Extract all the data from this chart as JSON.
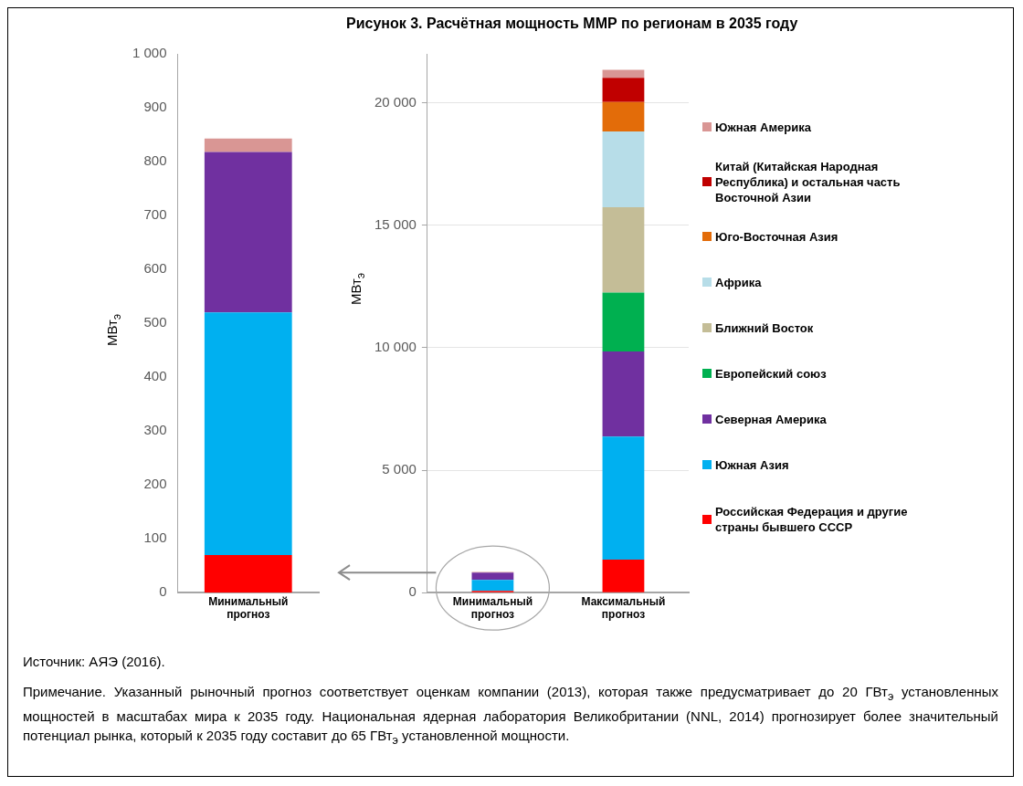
{
  "chart_data": [
    {
      "type": "bar",
      "ylabel": "МВт$_{э}$",
      "categories": [
        "Минимальный прогноз"
      ],
      "stacked": true,
      "grid": false,
      "ylim": [
        0,
        1000
      ],
      "yticks": [
        0,
        100,
        200,
        300,
        400,
        500,
        600,
        700,
        800,
        900,
        {
          "value": 1000,
          "label": "1 000"
        }
      ],
      "series": [
        {
          "color": "#ff0000",
          "values": [
            70
          ]
        },
        {
          "color": "#00b0f0",
          "values": [
            450
          ]
        },
        {
          "color": "#7030a0",
          "values": [
            298
          ]
        },
        {
          "color": "#d99694",
          "values": [
            25
          ]
        }
      ]
    },
    {
      "type": "bar",
      "title": "Рисунок 3. Расчётная мощность ММР по регионам в 2035 году",
      "ylabel": "МВт$_{э}$",
      "categories": [
        "Минимальный прогноз",
        "Максимальный прогноз"
      ],
      "stacked": true,
      "grid": "y",
      "legend": "right",
      "ylim": [
        0,
        22000
      ],
      "yticks": [
        0,
        {
          "value": 5000,
          "label": "5 000"
        },
        {
          "value": 10000,
          "label": "10 000"
        },
        {
          "value": 15000,
          "label": "15 000"
        },
        {
          "value": 20000,
          "label": "20 000"
        }
      ],
      "series": [
        {
          "name": "Российская Федерация и другие страны бывшего СССР",
          "color": "#ff0000",
          "values": [
            70,
            1350
          ]
        },
        {
          "name": "Южная Азия",
          "color": "#00b0f0",
          "values": [
            450,
            5020
          ]
        },
        {
          "name": "Северная Америка",
          "color": "#7030a0",
          "values": [
            300,
            3480
          ]
        },
        {
          "name": "Европейский союз",
          "color": "#00b050",
          "values": [
            0,
            2400
          ]
        },
        {
          "name": "Ближний Восток",
          "color": "#c4bd97",
          "values": [
            0,
            3490
          ]
        },
        {
          "name": "Африка",
          "color": "#b7dde8",
          "values": [
            0,
            3090
          ]
        },
        {
          "name": "Юго-Восточная Азия",
          "color": "#e36c09",
          "values": [
            0,
            1200
          ]
        },
        {
          "name": "Китай (Китайская Народная Республика) и остальная часть Восточной Азии",
          "color": "#c00000",
          "values": [
            0,
            990
          ]
        },
        {
          "name": "Южная Америка",
          "color": "#d99694",
          "values": [
            30,
            330
          ]
        }
      ],
      "annotations": [
        "Источник: АЯЭ (2016).",
        "Примечание. Указанный рыночный прогноз соответствует оценкам компании (2013), которая также предусматривает до 20 ГВт$_{э}$ установленных мощностей в масштабах мира к 2035 году. Национальная ядерная лаборатория Великобритании (NNL, 2014) прогнозирует более значительный потенциал рынка, который к 2035 году составит до 65 ГВт$_{э}$ установленной мощности."
      ]
    }
  ]
}
